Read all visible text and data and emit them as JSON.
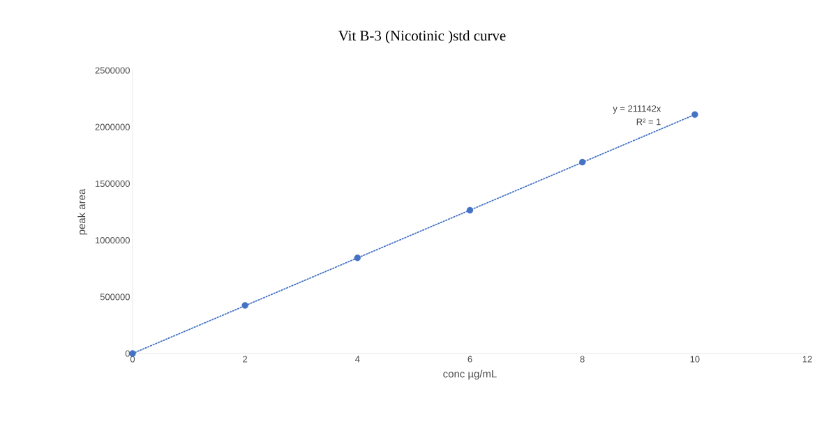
{
  "chart_data": {
    "type": "scatter",
    "title": "Vit B-3 (Nicotinic )std curve",
    "xlabel": "conc µg/mL",
    "ylabel": "peak area",
    "xlim": [
      0,
      12
    ],
    "ylim": [
      0,
      2500000
    ],
    "xticks": [
      0,
      2,
      4,
      6,
      8,
      10,
      12
    ],
    "yticks": [
      0,
      500000,
      1000000,
      1500000,
      2000000,
      2500000
    ],
    "series": [
      {
        "color": "#4472c4",
        "marker": "circle",
        "x": [
          0,
          2,
          4,
          6,
          8,
          10
        ],
        "values": [
          0,
          425000,
          845000,
          1265000,
          1690000,
          2110000
        ]
      },
      {
        "type": "line",
        "color": "#4472c4",
        "marker": "none",
        "line_style": "dotted",
        "x": [
          0,
          10
        ],
        "values": [
          0,
          2110000
        ]
      }
    ],
    "annotations": [
      "y = 211142x",
      "R² = 1"
    ]
  }
}
